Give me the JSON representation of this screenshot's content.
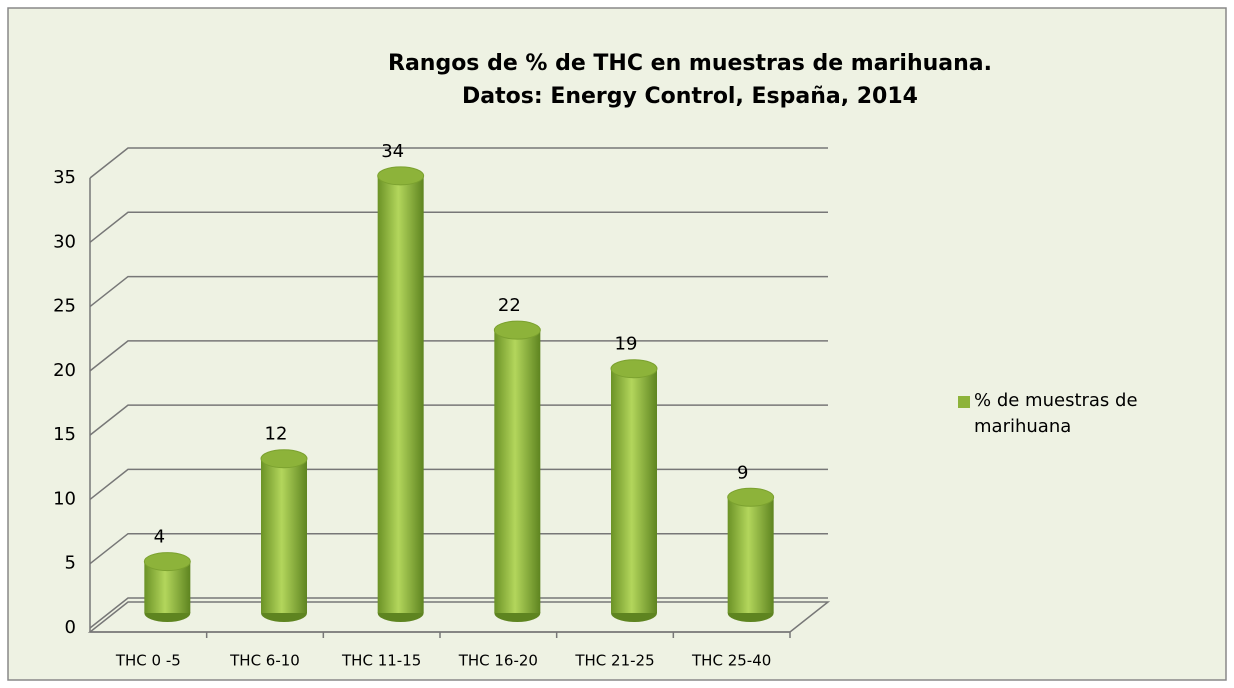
{
  "chart_data": {
    "type": "bar3d",
    "title": "Rangos de % de THC en muestras de marihuana.",
    "subtitle": "Datos: Energy Control, España, 2014",
    "categories": [
      "THC 0 -5",
      "THC 6-10",
      "THC 11-15",
      "THC 16-20",
      "THC 21-25",
      "THC 25-40"
    ],
    "series": [
      {
        "name": "% de muestras de marihuana",
        "color": "#8db33a",
        "values": [
          4,
          12,
          34,
          22,
          19,
          9
        ]
      }
    ],
    "ylim": [
      0,
      35
    ],
    "yticks": [
      0,
      5,
      10,
      15,
      20,
      25,
      30,
      35
    ],
    "grid": true,
    "legend": "right"
  }
}
